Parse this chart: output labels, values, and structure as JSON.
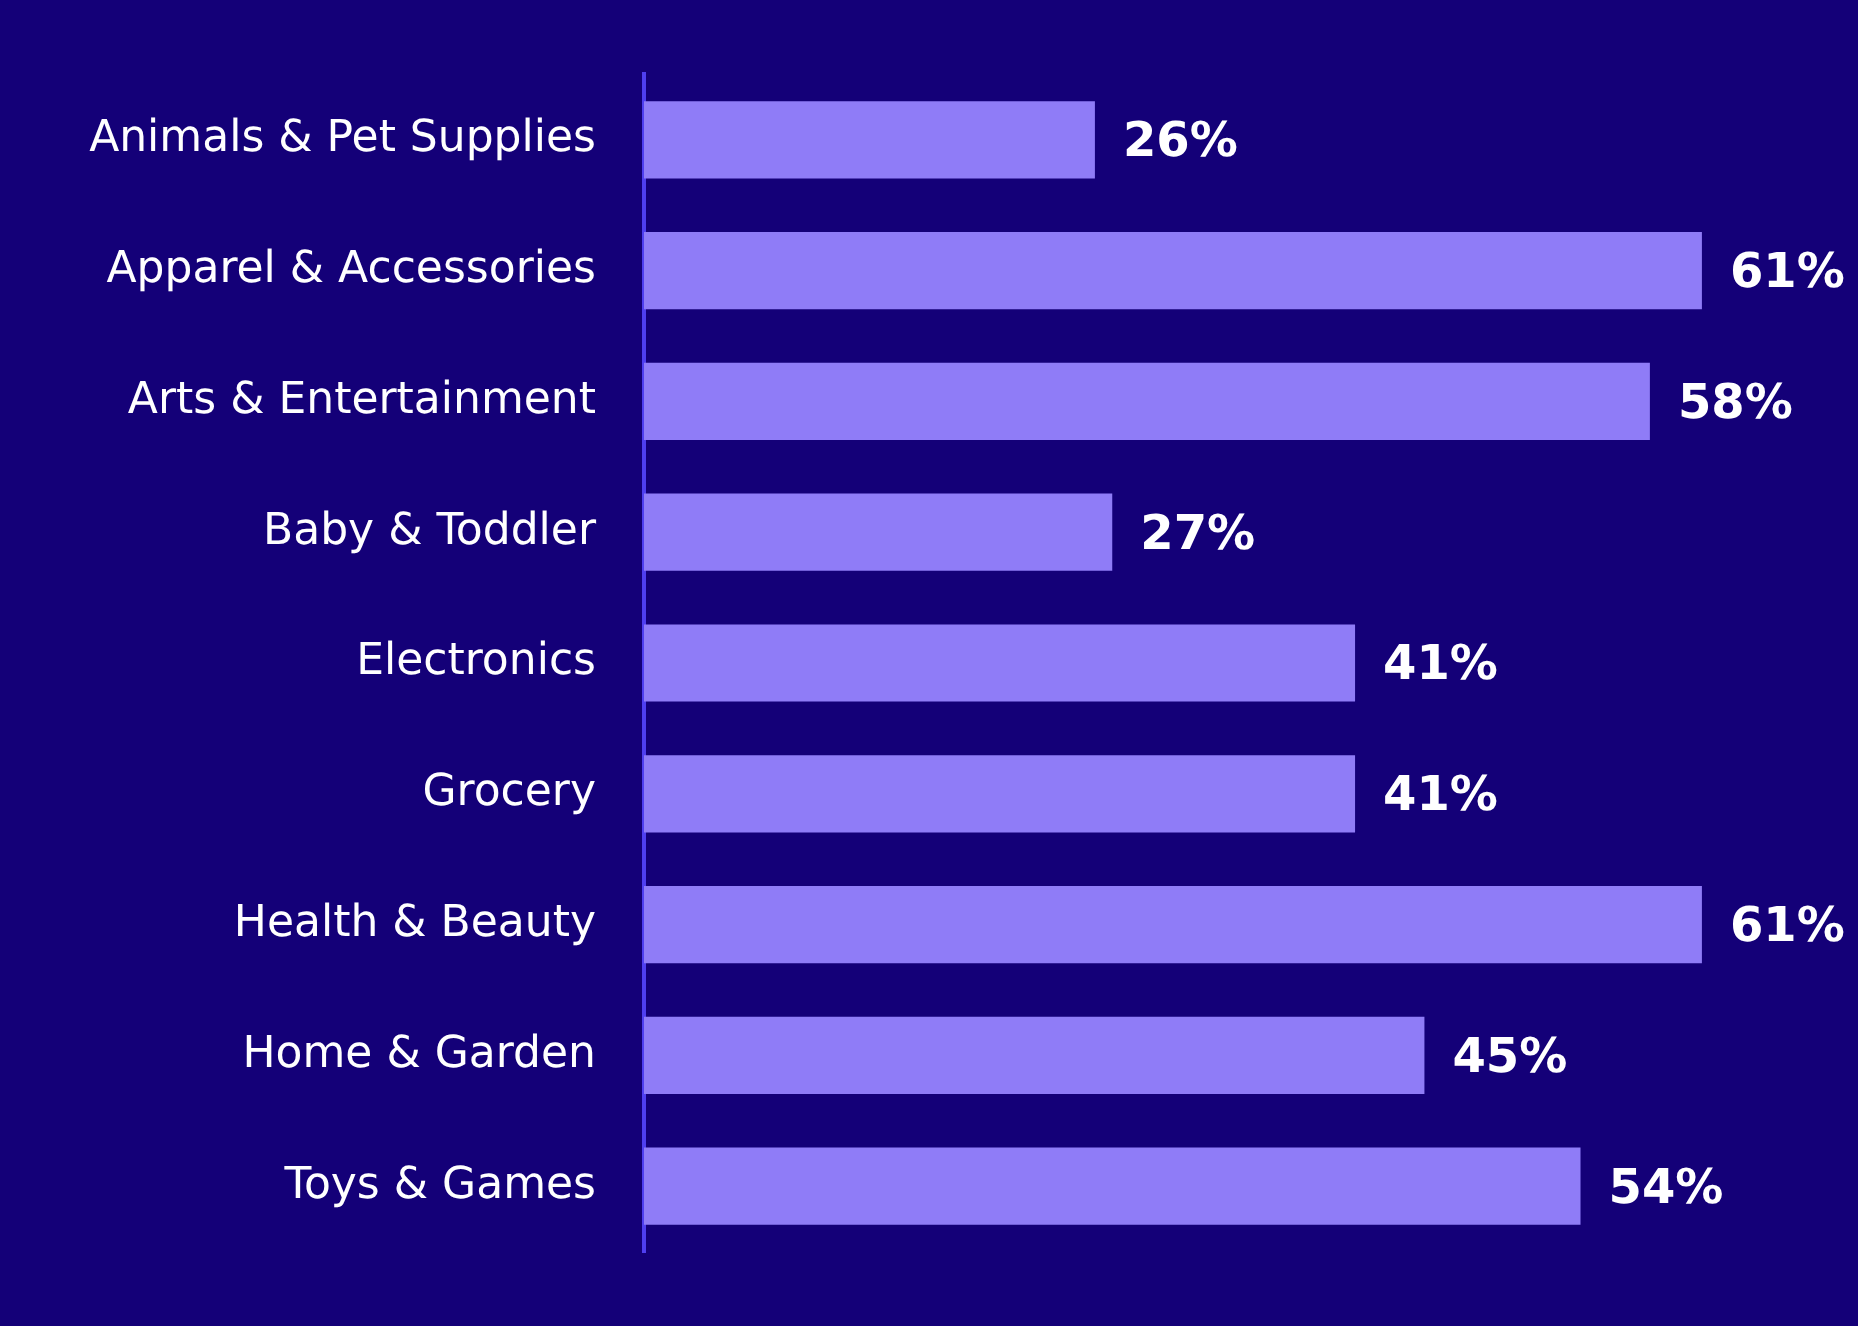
{
  "chart_data": {
    "type": "bar",
    "orientation": "horizontal",
    "categories": [
      "Animals & Pet Supplies",
      "Apparel & Accessories",
      "Arts & Entertainment",
      "Baby & Toddler",
      "Electronics",
      "Grocery",
      "Health & Beauty",
      "Home & Garden",
      "Toys & Games"
    ],
    "values": [
      26,
      61,
      58,
      27,
      41,
      41,
      61,
      45,
      54
    ],
    "value_labels": [
      "26%",
      "61%",
      "58%",
      "27%",
      "41%",
      "41%",
      "61%",
      "45%",
      "54%"
    ],
    "color": "#8f7cf7",
    "tick_labels": "y",
    "grid": false,
    "legend": false
  }
}
